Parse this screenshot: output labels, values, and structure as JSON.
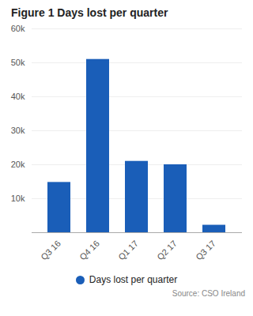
{
  "chart_data": {
    "type": "bar",
    "title": "Figure 1 Days lost per quarter",
    "categories": [
      "Q3 16",
      "Q4 16",
      "Q1 17",
      "Q2 17",
      "Q3 17"
    ],
    "series": [
      {
        "name": "Days lost per quarter",
        "color": "#1a5eb8",
        "values": [
          14800,
          51000,
          21000,
          20000,
          2200
        ]
      }
    ],
    "ylim": [
      0,
      60000
    ],
    "yticks": [
      {
        "value": 10000,
        "label": "10k"
      },
      {
        "value": 20000,
        "label": "20k"
      },
      {
        "value": 30000,
        "label": "30k"
      },
      {
        "value": 40000,
        "label": "40k"
      },
      {
        "value": 50000,
        "label": "50k"
      },
      {
        "value": 60000,
        "label": "60k"
      }
    ],
    "grid": true,
    "legend": "bottom",
    "caption": "Source: CSO Ireland"
  }
}
